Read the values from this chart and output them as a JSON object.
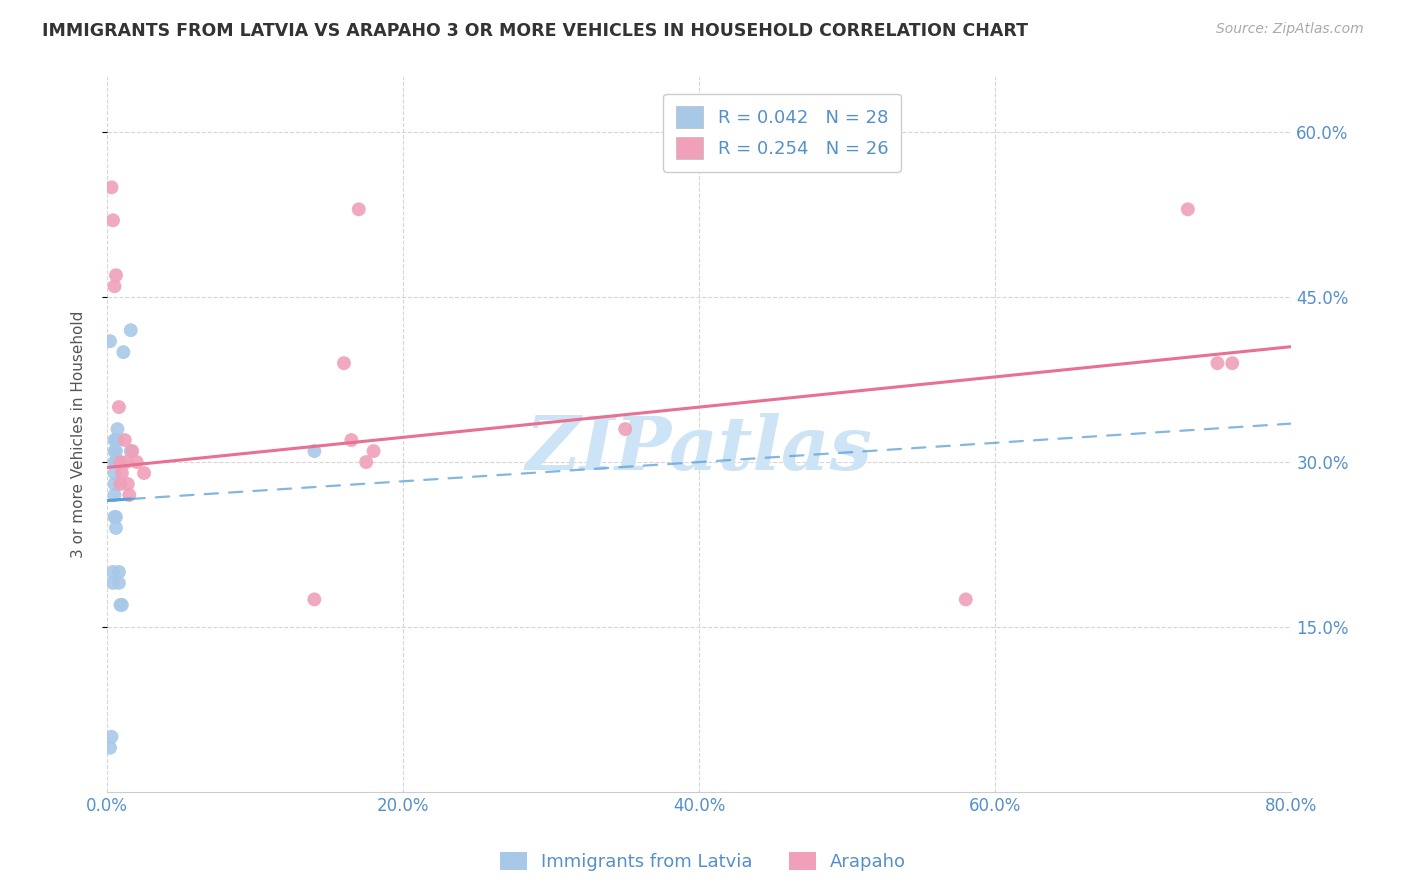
{
  "title": "IMMIGRANTS FROM LATVIA VS ARAPAHO 3 OR MORE VEHICLES IN HOUSEHOLD CORRELATION CHART",
  "source_text": "Source: ZipAtlas.com",
  "ylabel": "3 or more Vehicles in Household",
  "xlabel_ticks": [
    "0.0%",
    "20.0%",
    "40.0%",
    "60.0%",
    "80.0%"
  ],
  "ylabel_ticks": [
    "15.0%",
    "30.0%",
    "45.0%",
    "60.0%"
  ],
  "xlim": [
    0.0,
    0.8
  ],
  "ylim": [
    0.0,
    0.65
  ],
  "legend_label1": "R = 0.042   N = 28",
  "legend_label2": "R = 0.254   N = 26",
  "legend_xlabel": [
    "Immigrants from Latvia",
    "Arapaho"
  ],
  "watermark": "ZIPatlas",
  "blue_scatter_x": [
    0.002,
    0.003,
    0.004,
    0.004,
    0.005,
    0.005,
    0.005,
    0.005,
    0.005,
    0.005,
    0.005,
    0.006,
    0.006,
    0.006,
    0.006,
    0.006,
    0.007,
    0.007,
    0.007,
    0.008,
    0.008,
    0.009,
    0.01,
    0.011,
    0.016,
    0.016,
    0.14,
    0.002
  ],
  "blue_scatter_y": [
    0.04,
    0.05,
    0.19,
    0.2,
    0.25,
    0.27,
    0.28,
    0.29,
    0.3,
    0.31,
    0.32,
    0.24,
    0.25,
    0.3,
    0.31,
    0.32,
    0.3,
    0.32,
    0.33,
    0.19,
    0.2,
    0.17,
    0.17,
    0.4,
    0.42,
    0.31,
    0.31,
    0.41
  ],
  "pink_scatter_x": [
    0.003,
    0.004,
    0.005,
    0.006,
    0.008,
    0.009,
    0.009,
    0.01,
    0.012,
    0.013,
    0.014,
    0.015,
    0.017,
    0.02,
    0.025,
    0.14,
    0.16,
    0.165,
    0.17,
    0.175,
    0.18,
    0.35,
    0.58,
    0.73,
    0.75,
    0.76
  ],
  "pink_scatter_y": [
    0.55,
    0.52,
    0.46,
    0.47,
    0.35,
    0.3,
    0.28,
    0.29,
    0.32,
    0.3,
    0.28,
    0.27,
    0.31,
    0.3,
    0.29,
    0.175,
    0.39,
    0.32,
    0.53,
    0.3,
    0.31,
    0.33,
    0.175,
    0.53,
    0.39,
    0.39
  ],
  "blue_color": "#a8c8e8",
  "pink_color": "#f0a0b8",
  "blue_line_color": "#5b9fd4",
  "pink_line_color": "#e87090",
  "title_color": "#333333",
  "axis_label_color": "#5590cc",
  "grid_color": "#cccccc",
  "background_color": "#ffffff",
  "watermark_color": "#cce4f5"
}
